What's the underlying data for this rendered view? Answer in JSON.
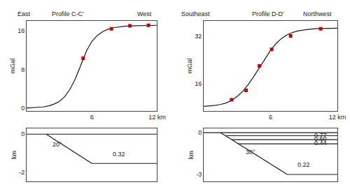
{
  "chart_data": [
    {
      "type": "line",
      "title": "Profile C-C’",
      "annotations": [
        "East",
        "West"
      ],
      "xlim": [
        0,
        12
      ],
      "xticks": [
        6,
        {
          "value": 12,
          "label": "12 km"
        }
      ],
      "ylim": [
        -0.5,
        18
      ],
      "yticks": [
        0,
        8,
        16
      ],
      "ylabel": "mGal",
      "grid": false,
      "series": [
        {
          "type": "line",
          "color": "#1a1a1a",
          "x": [
            0,
            0.3,
            0.6,
            1.0,
            1.5,
            2.0,
            2.5,
            3.0,
            3.5,
            4.0,
            4.5,
            5.0,
            5.5,
            6.0,
            6.5,
            7.0,
            7.5,
            8.0,
            9.0,
            10.0,
            11.0,
            12.0
          ],
          "values": [
            0.05,
            0.08,
            0.12,
            0.18,
            0.3,
            0.5,
            0.85,
            1.4,
            2.4,
            4.0,
            6.2,
            9.0,
            11.8,
            13.8,
            15.0,
            15.8,
            16.3,
            16.6,
            16.9,
            17.0,
            17.05,
            17.1
          ]
        },
        {
          "type": "scatter",
          "color": "#cc0000",
          "marker": "square",
          "x": [
            5.2,
            7.8,
            9.5,
            11.2
          ],
          "values": [
            10.3,
            16.4,
            17.0,
            17.1
          ]
        }
      ]
    },
    {
      "type": "line",
      "xlim": [
        0,
        12
      ],
      "ylim": [
        -2.5,
        0.3
      ],
      "yticks": [
        0,
        -2
      ],
      "ylabel": "km",
      "tick_labels": "y",
      "grid": false,
      "annotations": [
        {
          "text": "20°",
          "x": 2.8,
          "y": -0.55
        },
        {
          "text": "0.32",
          "x": 8.5,
          "y": -1.05
        }
      ],
      "series": [
        {
          "type": "line",
          "color": "#1a1a1a",
          "x": [
            0,
            12
          ],
          "values": [
            0,
            0
          ]
        },
        {
          "type": "line",
          "color": "#1a1a1a",
          "x": [
            1.8,
            6.0
          ],
          "values": [
            0.0,
            -1.55
          ]
        },
        {
          "type": "line",
          "color": "#1a1a1a",
          "x": [
            6.0,
            12
          ],
          "values": [
            -1.55,
            -1.55
          ]
        }
      ]
    },
    {
      "type": "line",
      "title": "Profile D-D’",
      "annotations": [
        "Southeast",
        "Northwest"
      ],
      "xlim": [
        0,
        12
      ],
      "xticks": [
        6,
        {
          "value": 12,
          "label": "12 km"
        }
      ],
      "ylim": [
        7,
        37
      ],
      "yticks": [
        16,
        32
      ],
      "ylabel": "mGal",
      "grid": false,
      "series": [
        {
          "type": "line",
          "color": "#1a1a1a",
          "x": [
            0,
            0.5,
            1.0,
            1.5,
            2.0,
            2.5,
            3.0,
            3.5,
            4.0,
            4.5,
            5.0,
            5.5,
            6.0,
            6.5,
            7.0,
            7.5,
            8.0,
            8.5,
            9.0,
            9.5,
            10.0,
            11.0,
            12.0
          ],
          "values": [
            8.5,
            8.6,
            8.8,
            9.1,
            9.6,
            10.5,
            11.8,
            13.5,
            15.8,
            18.5,
            21.5,
            24.5,
            27.2,
            29.5,
            31.2,
            32.4,
            33.2,
            33.7,
            34.0,
            34.25,
            34.4,
            34.55,
            34.6
          ]
        },
        {
          "type": "scatter",
          "color": "#cc0000",
          "marker": "square",
          "x": [
            2.5,
            3.8,
            5.0,
            6.1,
            7.8,
            10.5
          ],
          "values": [
            10.7,
            13.8,
            22.0,
            27.5,
            32.0,
            34.4
          ]
        }
      ]
    },
    {
      "type": "line",
      "xlim": [
        0,
        12
      ],
      "ylim": [
        -3.5,
        0.3
      ],
      "yticks": [
        0,
        -3
      ],
      "ylabel": "km",
      "tick_labels": "y",
      "grid": false,
      "annotations": [
        {
          "text": "0.77",
          "x": 10.5,
          "y": -0.18
        },
        {
          "text": "0.60",
          "x": 10.5,
          "y": -0.46
        },
        {
          "text": "0.44",
          "x": 10.5,
          "y": -0.76
        },
        {
          "text": "30°",
          "x": 4.2,
          "y": -1.4
        },
        {
          "text": "0.22",
          "x": 9.0,
          "y": -2.3
        }
      ],
      "series": [
        {
          "type": "line",
          "color": "#1a1a1a",
          "x": [
            0,
            12
          ],
          "values": [
            0,
            0
          ]
        },
        {
          "type": "line",
          "color": "#1a1a1a",
          "x": [
            1.5,
            7.5
          ],
          "values": [
            0.0,
            -3.0
          ]
        },
        {
          "type": "line",
          "color": "#1a1a1a",
          "x": [
            7.5,
            12
          ],
          "values": [
            -3.0,
            -3.0
          ]
        },
        {
          "type": "line",
          "color": "#1a1a1a",
          "x": [
            1.94,
            12
          ],
          "values": [
            -0.22,
            -0.22
          ]
        },
        {
          "type": "line",
          "color": "#1a1a1a",
          "x": [
            2.5,
            12
          ],
          "values": [
            -0.5,
            -0.5
          ]
        },
        {
          "type": "line",
          "color": "#1a1a1a",
          "x": [
            3.1,
            12
          ],
          "values": [
            -0.8,
            -0.8
          ]
        }
      ]
    }
  ]
}
